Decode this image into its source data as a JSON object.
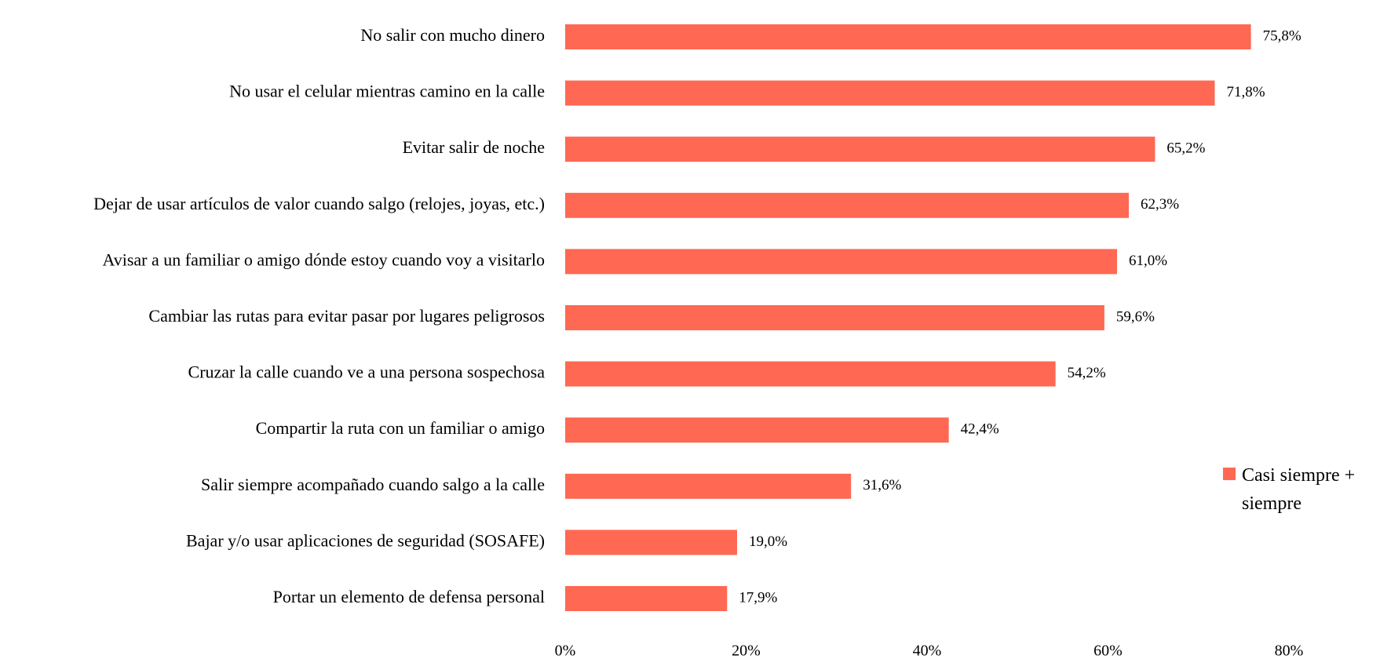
{
  "chart_data": {
    "type": "hbar",
    "categories": [
      "No salir con mucho dinero",
      "No usar el celular mientras camino en la calle",
      "Evitar salir de noche",
      "Dejar de usar artículos de valor cuando salgo (relojes, joyas, etc.)",
      "Avisar a un familiar o amigo dónde estoy cuando voy a visitarlo",
      "Cambiar las rutas para evitar pasar por lugares peligrosos",
      "Cruzar la calle cuando ve a una persona sospechosa",
      "Compartir la ruta con un familiar o amigo",
      "Salir siempre acompañado cuando salgo a la calle",
      "Bajar y/o usar aplicaciones de seguridad (SOSAFE)",
      "Portar un elemento de defensa personal"
    ],
    "series": [
      {
        "name": "Casi siempre + siempre",
        "color": "#ff6853",
        "values": [
          75.8,
          71.8,
          65.2,
          62.3,
          61.0,
          59.6,
          54.2,
          42.4,
          31.6,
          19.0,
          17.9
        ],
        "value_labels": [
          "75,8%",
          "71,8%",
          "65,2%",
          "62,3%",
          "61,0%",
          "59,6%",
          "54,2%",
          "42,4%",
          "31,6%",
          "19,0%",
          "17,9%"
        ]
      }
    ],
    "xlim": [
      0,
      80
    ],
    "xticks": [
      {
        "value": 0,
        "label": "0%"
      },
      {
        "value": 20,
        "label": "20%"
      },
      {
        "value": 40,
        "label": "40%"
      },
      {
        "value": 60,
        "label": "60%"
      },
      {
        "value": 80,
        "label": "80%"
      }
    ],
    "grid": false,
    "legend": "right"
  }
}
